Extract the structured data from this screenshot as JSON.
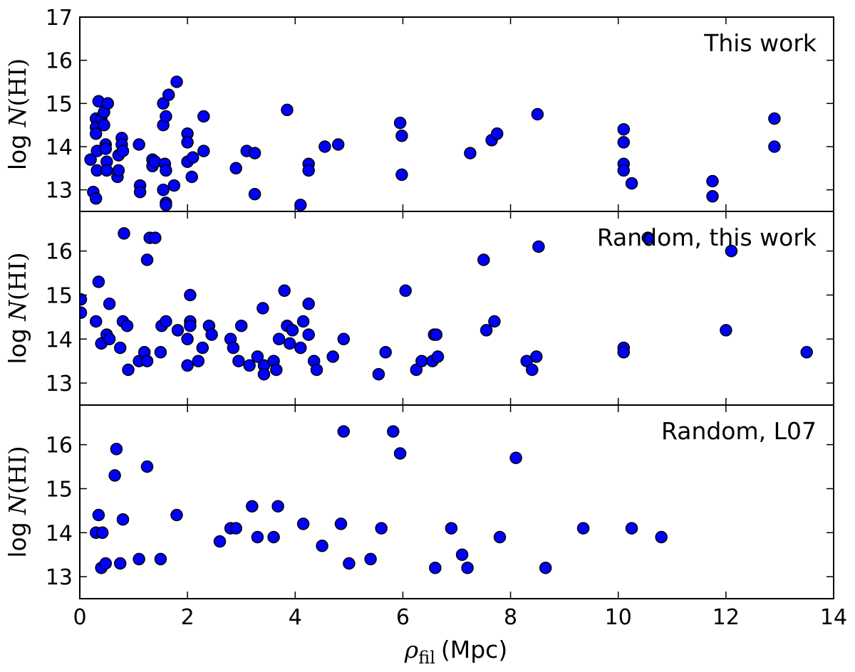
{
  "chart_data": {
    "type": "scatter",
    "x_axis": {
      "label_symbol": "ρ",
      "label_subscript": "fil",
      "label_unit": "(Mpc)",
      "lim": [
        0,
        14
      ],
      "ticks": [
        0,
        2,
        4,
        6,
        8,
        10,
        12,
        14
      ]
    },
    "y_axis_label": {
      "prefix": "log ",
      "symbol": "N",
      "suffix": "(HI)"
    },
    "marker_color": "#0000ff",
    "marker_edge_color": "#000000",
    "panels": [
      {
        "label": "This work",
        "ylim": [
          12.5,
          17
        ],
        "yticks": [
          13,
          14,
          15,
          16,
          17
        ],
        "points": [
          [
            0.2,
            13.7
          ],
          [
            0.25,
            12.95
          ],
          [
            0.3,
            12.8
          ],
          [
            0.3,
            14.65
          ],
          [
            0.3,
            14.45
          ],
          [
            0.3,
            14.3
          ],
          [
            0.32,
            13.9
          ],
          [
            0.32,
            13.45
          ],
          [
            0.35,
            15.05
          ],
          [
            0.4,
            14.65
          ],
          [
            0.45,
            14.8
          ],
          [
            0.45,
            14.5
          ],
          [
            0.48,
            14.05
          ],
          [
            0.48,
            13.95
          ],
          [
            0.5,
            13.65
          ],
          [
            0.5,
            13.45
          ],
          [
            0.52,
            15.0
          ],
          [
            0.7,
            13.3
          ],
          [
            0.72,
            13.45
          ],
          [
            0.72,
            13.8
          ],
          [
            0.78,
            14.2
          ],
          [
            0.78,
            14.05
          ],
          [
            0.8,
            13.9
          ],
          [
            1.1,
            14.05
          ],
          [
            1.12,
            13.1
          ],
          [
            1.12,
            12.95
          ],
          [
            1.35,
            13.7
          ],
          [
            1.35,
            13.55
          ],
          [
            1.4,
            13.65
          ],
          [
            1.55,
            15.0
          ],
          [
            1.55,
            14.5
          ],
          [
            1.55,
            13.0
          ],
          [
            1.58,
            13.6
          ],
          [
            1.6,
            14.7
          ],
          [
            1.6,
            13.45
          ],
          [
            1.6,
            12.7
          ],
          [
            1.6,
            12.65
          ],
          [
            1.65,
            15.2
          ],
          [
            1.75,
            13.1
          ],
          [
            1.8,
            15.5
          ],
          [
            2.0,
            14.3
          ],
          [
            2.0,
            14.1
          ],
          [
            2.0,
            13.65
          ],
          [
            2.08,
            13.3
          ],
          [
            2.1,
            13.75
          ],
          [
            2.3,
            14.7
          ],
          [
            2.3,
            13.9
          ],
          [
            2.9,
            13.5
          ],
          [
            3.1,
            13.9
          ],
          [
            3.25,
            13.85
          ],
          [
            3.25,
            12.9
          ],
          [
            3.85,
            14.85
          ],
          [
            4.1,
            12.65
          ],
          [
            4.25,
            13.6
          ],
          [
            4.25,
            13.45
          ],
          [
            4.55,
            14.0
          ],
          [
            4.8,
            14.05
          ],
          [
            5.95,
            14.55
          ],
          [
            5.98,
            14.25
          ],
          [
            5.98,
            13.35
          ],
          [
            7.25,
            13.85
          ],
          [
            7.65,
            14.15
          ],
          [
            7.75,
            14.3
          ],
          [
            8.5,
            14.75
          ],
          [
            10.1,
            14.4
          ],
          [
            10.1,
            14.1
          ],
          [
            10.1,
            13.6
          ],
          [
            10.1,
            13.45
          ],
          [
            10.25,
            13.15
          ],
          [
            11.75,
            13.2
          ],
          [
            11.75,
            12.85
          ],
          [
            12.9,
            14.65
          ],
          [
            12.9,
            14.0
          ]
        ]
      },
      {
        "label": "Random, this work",
        "ylim": [
          12.5,
          16.9
        ],
        "yticks": [
          13,
          14,
          15,
          16
        ],
        "points": [
          [
            0.02,
            14.9
          ],
          [
            0.02,
            14.6
          ],
          [
            0.3,
            14.4
          ],
          [
            0.35,
            15.3
          ],
          [
            0.4,
            13.9
          ],
          [
            0.5,
            14.1
          ],
          [
            0.55,
            14.8
          ],
          [
            0.55,
            14.0
          ],
          [
            0.75,
            13.8
          ],
          [
            0.8,
            14.4
          ],
          [
            0.82,
            16.4
          ],
          [
            0.88,
            14.3
          ],
          [
            0.9,
            13.3
          ],
          [
            1.1,
            13.5
          ],
          [
            1.2,
            13.7
          ],
          [
            1.25,
            13.5
          ],
          [
            1.25,
            15.8
          ],
          [
            1.3,
            16.3
          ],
          [
            1.4,
            16.3
          ],
          [
            1.5,
            13.7
          ],
          [
            1.52,
            14.3
          ],
          [
            1.6,
            14.4
          ],
          [
            1.82,
            14.2
          ],
          [
            2.0,
            13.4
          ],
          [
            2.0,
            14.0
          ],
          [
            2.05,
            15.0
          ],
          [
            2.05,
            14.4
          ],
          [
            2.05,
            14.3
          ],
          [
            2.2,
            13.5
          ],
          [
            2.28,
            13.8
          ],
          [
            2.4,
            14.3
          ],
          [
            2.45,
            14.1
          ],
          [
            2.8,
            14.0
          ],
          [
            2.85,
            13.8
          ],
          [
            2.95,
            13.5
          ],
          [
            3.0,
            14.3
          ],
          [
            3.15,
            13.4
          ],
          [
            3.3,
            13.6
          ],
          [
            3.4,
            14.7
          ],
          [
            3.42,
            13.4
          ],
          [
            3.42,
            13.2
          ],
          [
            3.6,
            13.5
          ],
          [
            3.65,
            13.3
          ],
          [
            3.7,
            14.0
          ],
          [
            3.8,
            15.1
          ],
          [
            3.85,
            14.3
          ],
          [
            3.9,
            13.9
          ],
          [
            3.95,
            14.2
          ],
          [
            4.1,
            13.8
          ],
          [
            4.15,
            14.4
          ],
          [
            4.25,
            14.1
          ],
          [
            4.25,
            14.8
          ],
          [
            4.35,
            13.5
          ],
          [
            4.4,
            13.3
          ],
          [
            4.7,
            13.6
          ],
          [
            4.9,
            14.0
          ],
          [
            5.55,
            13.2
          ],
          [
            5.68,
            13.7
          ],
          [
            6.05,
            15.1
          ],
          [
            6.25,
            13.3
          ],
          [
            6.35,
            13.5
          ],
          [
            6.55,
            13.5
          ],
          [
            6.58,
            14.1
          ],
          [
            6.62,
            14.1
          ],
          [
            6.65,
            13.6
          ],
          [
            7.5,
            15.8
          ],
          [
            7.55,
            14.2
          ],
          [
            7.7,
            14.4
          ],
          [
            8.3,
            13.5
          ],
          [
            8.4,
            13.3
          ],
          [
            8.48,
            13.6
          ],
          [
            8.52,
            16.1
          ],
          [
            10.1,
            13.8
          ],
          [
            10.1,
            13.7
          ],
          [
            10.55,
            16.3
          ],
          [
            12.0,
            14.2
          ],
          [
            12.1,
            16.0
          ],
          [
            13.5,
            13.7
          ]
        ]
      },
      {
        "label": "Random, L07",
        "ylim": [
          12.5,
          16.9
        ],
        "yticks": [
          13,
          14,
          15,
          16
        ],
        "points": [
          [
            0.3,
            14.0
          ],
          [
            0.35,
            14.4
          ],
          [
            0.4,
            13.2
          ],
          [
            0.42,
            14.0
          ],
          [
            0.48,
            13.3
          ],
          [
            0.65,
            15.3
          ],
          [
            0.68,
            15.9
          ],
          [
            0.75,
            13.3
          ],
          [
            0.8,
            14.3
          ],
          [
            1.1,
            13.4
          ],
          [
            1.25,
            15.5
          ],
          [
            1.5,
            13.4
          ],
          [
            1.8,
            14.4
          ],
          [
            2.6,
            13.8
          ],
          [
            2.8,
            14.1
          ],
          [
            2.9,
            14.1
          ],
          [
            3.2,
            14.6
          ],
          [
            3.3,
            13.9
          ],
          [
            3.6,
            13.9
          ],
          [
            3.68,
            14.6
          ],
          [
            4.15,
            14.2
          ],
          [
            4.5,
            13.7
          ],
          [
            4.85,
            14.2
          ],
          [
            4.9,
            16.3
          ],
          [
            5.0,
            13.3
          ],
          [
            5.4,
            13.4
          ],
          [
            5.6,
            14.1
          ],
          [
            5.82,
            16.3
          ],
          [
            5.95,
            15.8
          ],
          [
            6.6,
            13.2
          ],
          [
            6.9,
            14.1
          ],
          [
            7.1,
            13.5
          ],
          [
            7.2,
            13.2
          ],
          [
            7.8,
            13.9
          ],
          [
            8.1,
            15.7
          ],
          [
            8.65,
            13.2
          ],
          [
            9.35,
            14.1
          ],
          [
            10.25,
            14.1
          ],
          [
            10.8,
            13.9
          ]
        ]
      }
    ]
  }
}
